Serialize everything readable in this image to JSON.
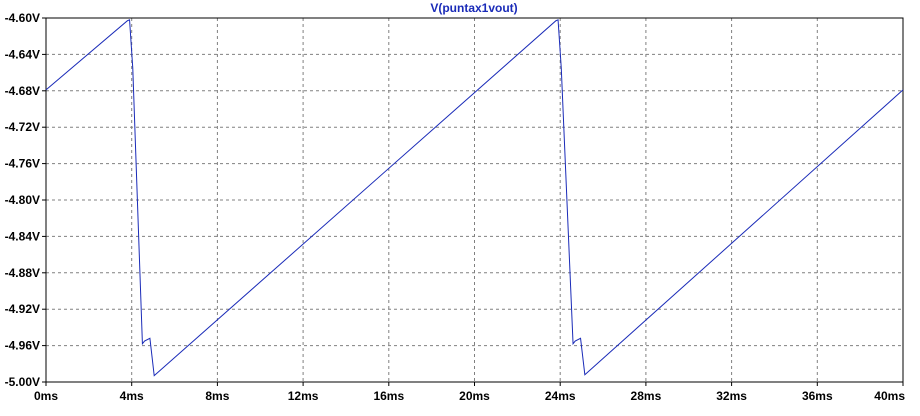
{
  "chart_data": {
    "type": "line",
    "title": "V(puntax1vout)",
    "xlabel": "",
    "ylabel": "",
    "xlim": [
      0,
      40
    ],
    "ylim": [
      -5.0,
      -4.6
    ],
    "x_ticks": [
      0,
      4,
      8,
      12,
      16,
      20,
      24,
      28,
      32,
      36,
      40
    ],
    "x_tick_labels": [
      "0ms",
      "4ms",
      "8ms",
      "12ms",
      "16ms",
      "20ms",
      "24ms",
      "28ms",
      "32ms",
      "36ms",
      "40ms"
    ],
    "y_ticks": [
      -4.6,
      -4.64,
      -4.68,
      -4.72,
      -4.76,
      -4.8,
      -4.84,
      -4.88,
      -4.92,
      -4.96,
      -5.0
    ],
    "y_tick_labels": [
      "-4.60V",
      "-4.64V",
      "-4.68V",
      "-4.72V",
      "-4.76V",
      "-4.80V",
      "-4.84V",
      "-4.88V",
      "-4.92V",
      "-4.96V",
      "-5.00V"
    ],
    "grid": true,
    "series": [
      {
        "name": "V(puntax1vout)",
        "color": "#1a2bb8",
        "x": [
          0,
          3.8,
          3.9,
          4.05,
          4.5,
          4.6,
          4.85,
          5.05,
          23.8,
          23.9,
          24.05,
          24.6,
          24.7,
          24.95,
          25.15,
          40
        ],
        "y": [
          -4.679,
          -4.603,
          -4.602,
          -4.655,
          -4.958,
          -4.955,
          -4.952,
          -4.993,
          -4.603,
          -4.602,
          -4.655,
          -4.958,
          -4.955,
          -4.952,
          -4.992,
          -4.679
        ]
      }
    ]
  }
}
